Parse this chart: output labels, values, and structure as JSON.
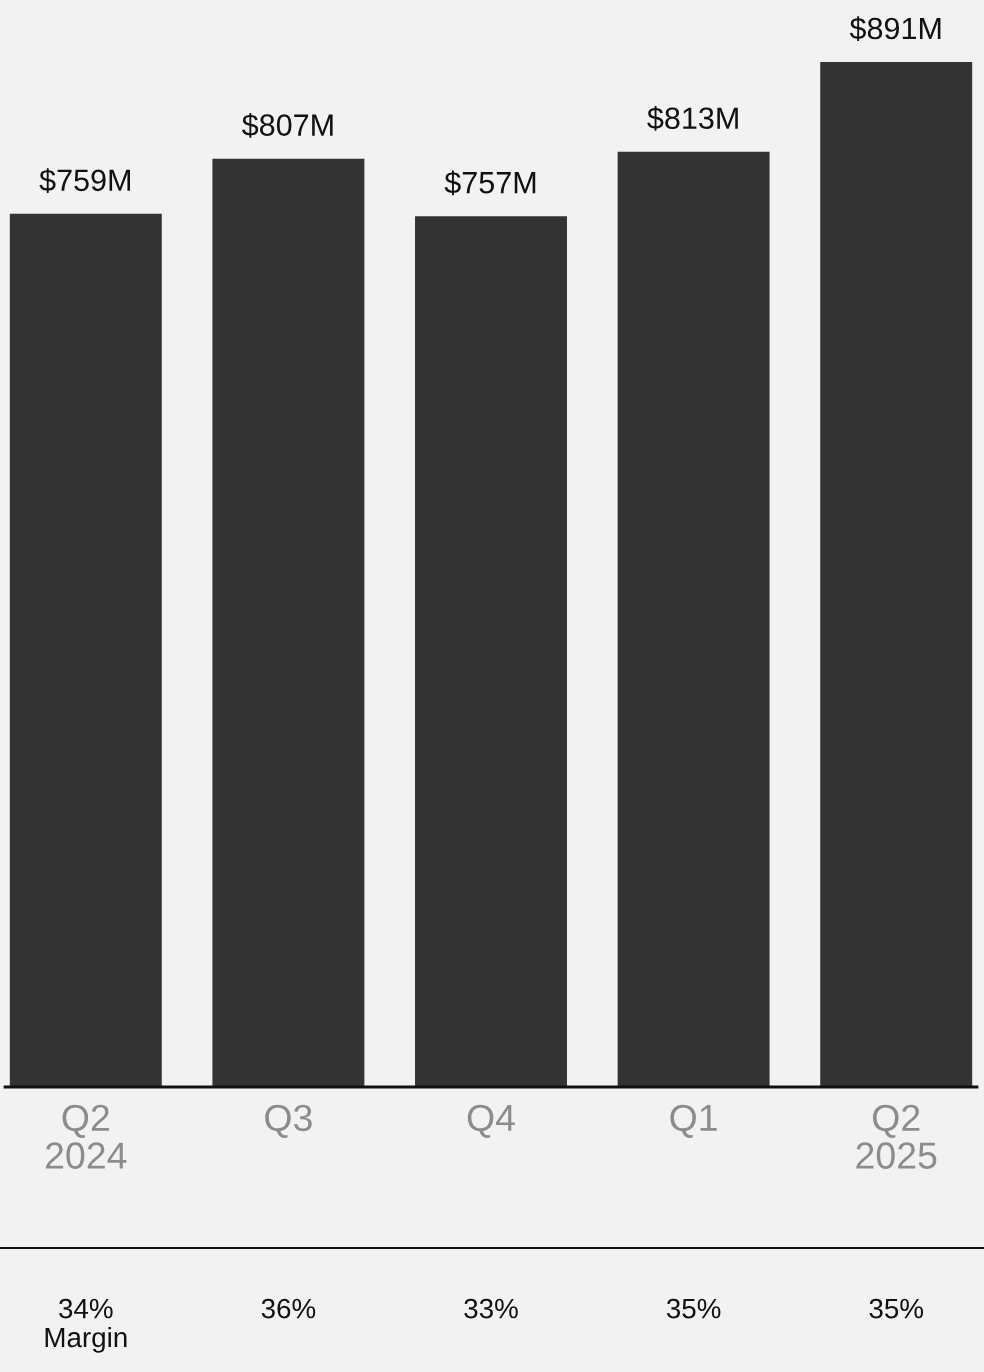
{
  "chart_data": {
    "type": "bar",
    "categories": [
      "Q2\n2024",
      "Q3",
      "Q4",
      "Q1",
      "Q2\n2025"
    ],
    "values": [
      759,
      807,
      757,
      813,
      891
    ],
    "value_labels": [
      "$759M",
      "$807M",
      "$757M",
      "$813M",
      "$891M"
    ],
    "color": "#333333",
    "annotations": [
      "34%\nMargin",
      "36%",
      "33%",
      "35%",
      "35%"
    ],
    "grid": false
  }
}
